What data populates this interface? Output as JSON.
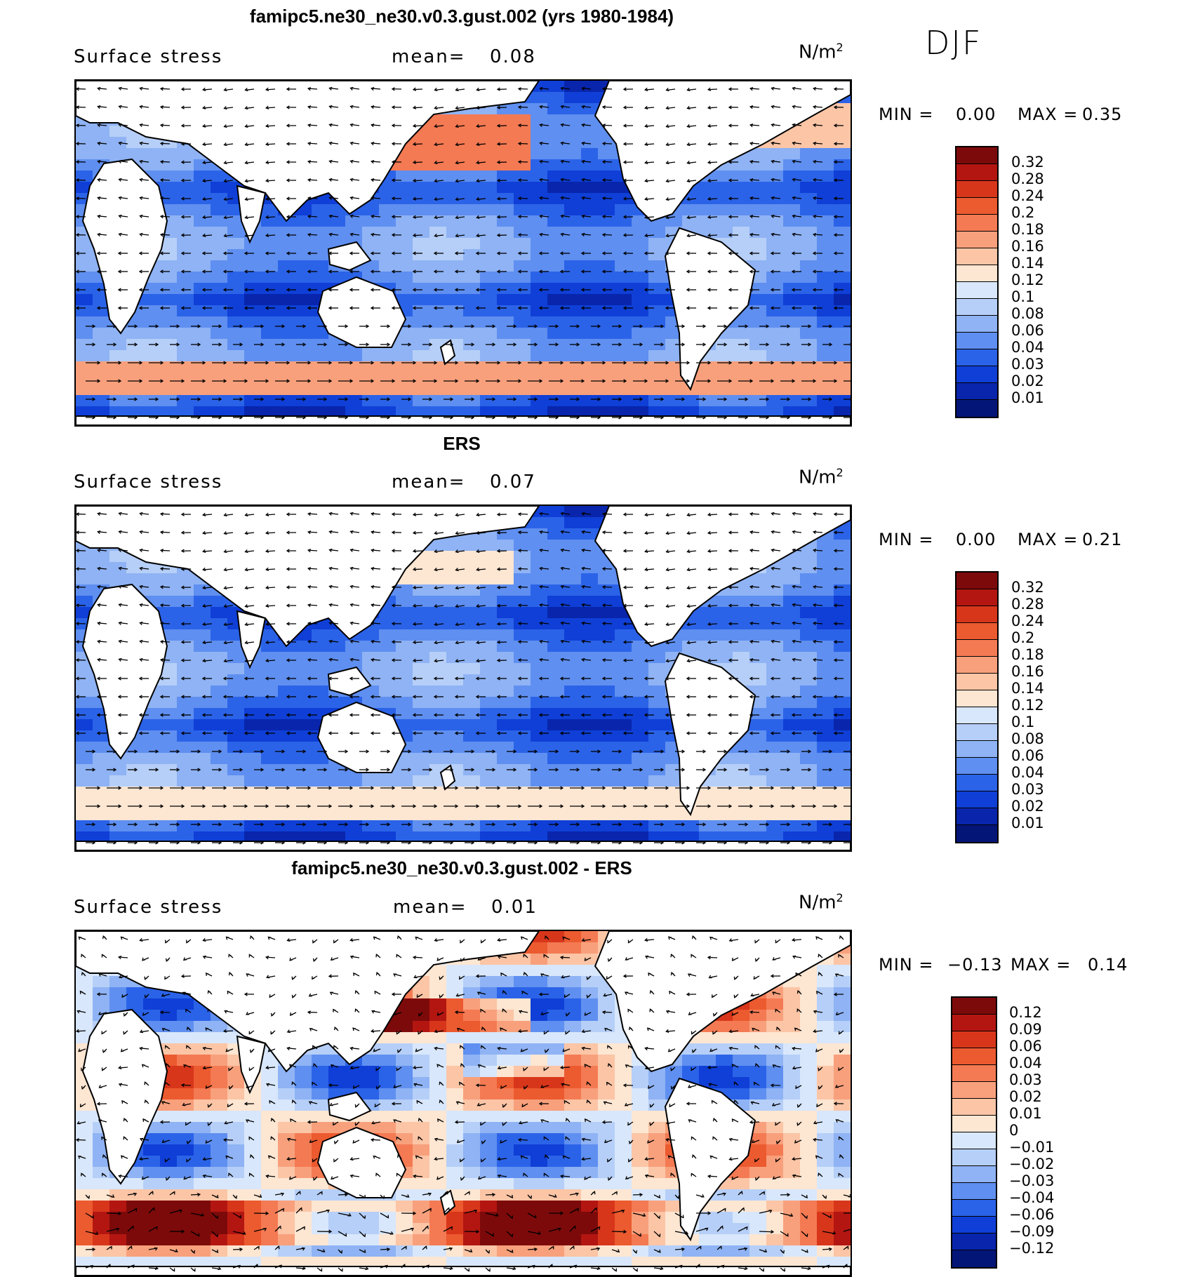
{
  "season": "DJF",
  "units_base": "N/m",
  "units_exp": "2",
  "colors": {
    "pos": [
      "#fde6d2",
      "#fbc5a6",
      "#f8a07c",
      "#f47a53",
      "#ec5a2f",
      "#d8361b",
      "#b31611",
      "#7d0a0a"
    ],
    "neg": [
      "#d8e7fb",
      "#b6cff8",
      "#8fb3f4",
      "#5f8ff0",
      "#2b63e8",
      "#0f3fd6",
      "#0825ac",
      "#041578"
    ],
    "land": "#ffffff",
    "coast": "#000000",
    "arrow": "#000000"
  },
  "panels": [
    {
      "title": "famipc5.ne30_ne30.v0.3.gust.002 (yrs 1980-1984)",
      "label": "Surface stress",
      "mean_label": "mean=",
      "mean_value": "0.08",
      "min_label": "MIN =",
      "min_value": "0.00",
      "max_label": "MAX =",
      "max_value": "0.35",
      "variant": "model",
      "colorbar": [
        "0.32",
        "0.28",
        "0.24",
        "0.2",
        "0.18",
        "0.16",
        "0.14",
        "0.12",
        "0.1",
        "0.08",
        "0.06",
        "0.04",
        "0.03",
        "0.02",
        "0.01"
      ]
    },
    {
      "title": "ERS",
      "label": "Surface stress",
      "mean_label": "mean=",
      "mean_value": "0.07",
      "min_label": "MIN =",
      "min_value": "0.00",
      "max_label": "MAX =",
      "max_value": "0.21",
      "variant": "obs",
      "colorbar": [
        "0.32",
        "0.28",
        "0.24",
        "0.2",
        "0.18",
        "0.16",
        "0.14",
        "0.12",
        "0.1",
        "0.08",
        "0.06",
        "0.04",
        "0.03",
        "0.02",
        "0.01"
      ]
    },
    {
      "title": "famipc5.ne30_ne30.v0.3.gust.002 - ERS",
      "label": "Surface stress",
      "mean_label": "mean=",
      "mean_value": "0.01",
      "min_label": "MIN =",
      "min_value": "−0.13",
      "max_label": "MAX =",
      "max_value": "0.14",
      "variant": "diff",
      "colorbar": [
        "0.12",
        "0.09",
        "0.06",
        "0.04",
        "0.03",
        "0.02",
        "0.01",
        "0",
        "−0.01",
        "−0.02",
        "−0.03",
        "−0.04",
        "−0.06",
        "−0.09",
        "−0.12"
      ]
    }
  ]
}
